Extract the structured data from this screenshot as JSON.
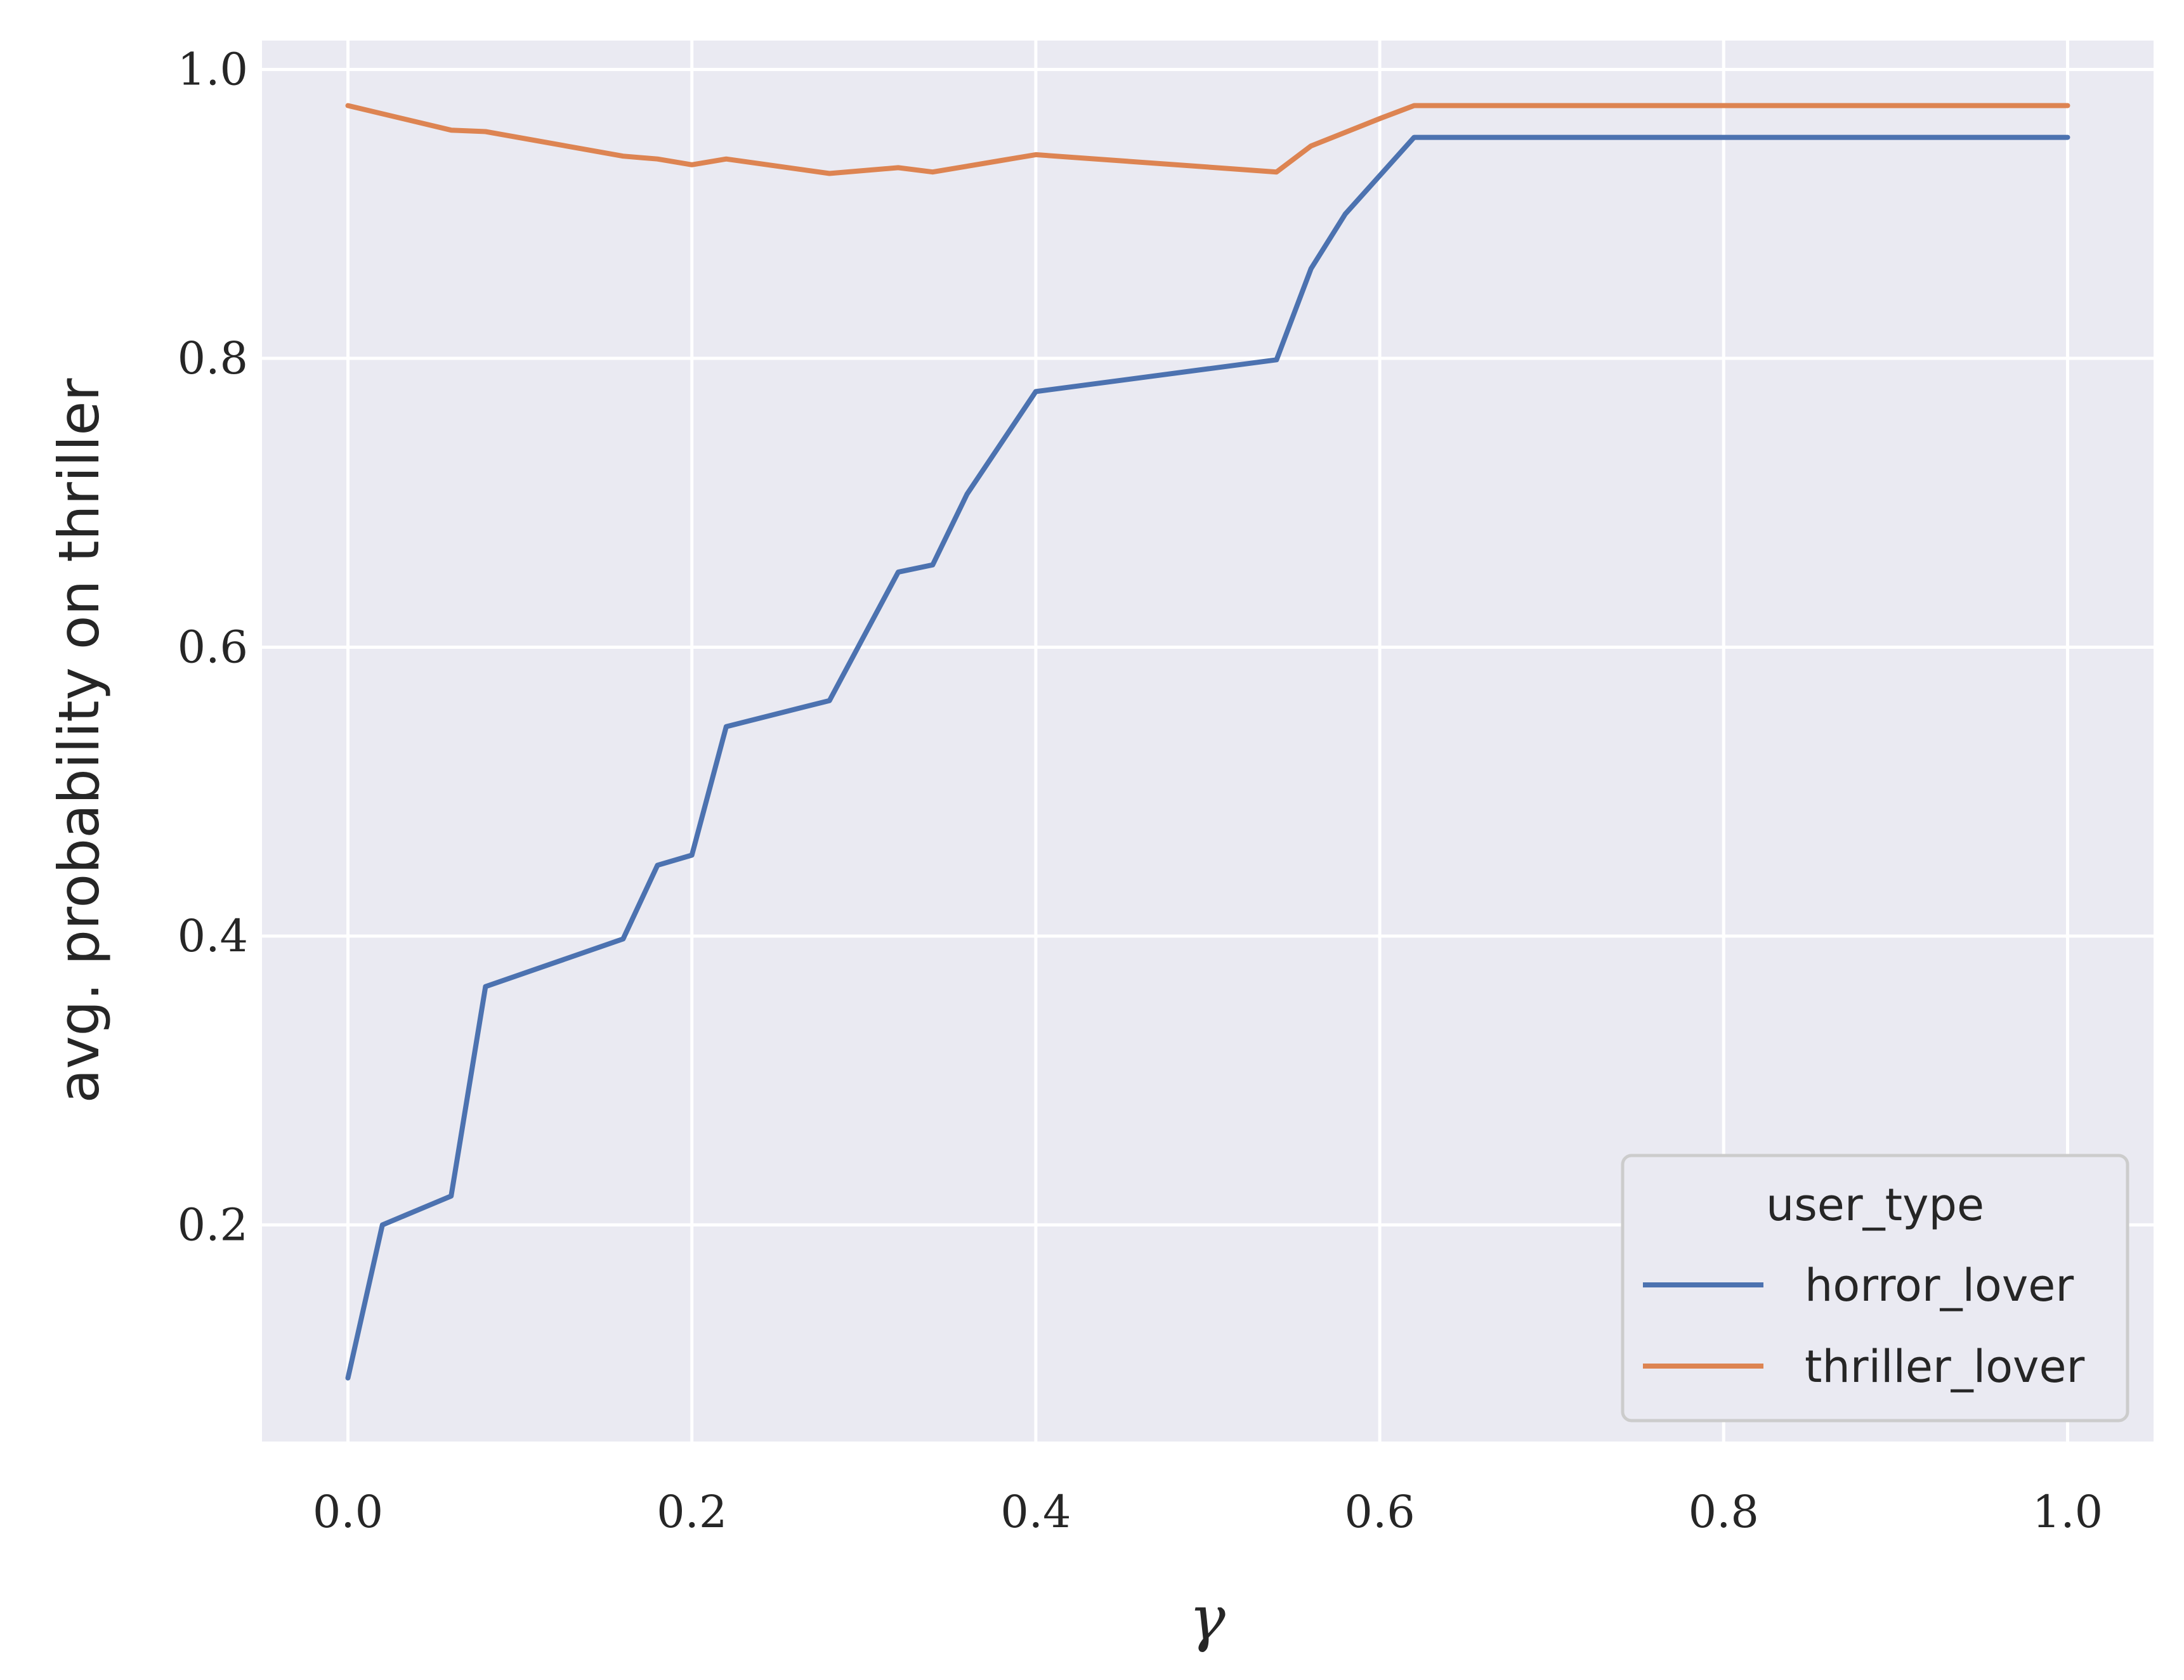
{
  "chart_data": {
    "type": "line",
    "title": "",
    "xlabel": "γ",
    "ylabel": "avg. probability on thriller",
    "xlim": [
      -0.05,
      1.05
    ],
    "ylim": [
      0.05,
      1.02
    ],
    "xticks": [
      0.0,
      0.2,
      0.4,
      0.6,
      0.8,
      1.0
    ],
    "xtick_labels": [
      "0.0",
      "0.2",
      "0.4",
      "0.6",
      "0.8",
      "1.0"
    ],
    "yticks": [
      0.2,
      0.4,
      0.6,
      0.8,
      1.0
    ],
    "ytick_labels": [
      "0.2",
      "0.4",
      "0.6",
      "0.8",
      "1.0"
    ],
    "grid": true,
    "background": "#eaeaf2",
    "legend": {
      "title": "user_type",
      "placement": "bottom-right"
    },
    "series": [
      {
        "name": "horror_lover",
        "color": "#4c72b0",
        "x": [
          0.0,
          0.02,
          0.06,
          0.08,
          0.16,
          0.18,
          0.2,
          0.22,
          0.28,
          0.32,
          0.34,
          0.36,
          0.4,
          0.54,
          0.56,
          0.58,
          0.62,
          1.0
        ],
        "y": [
          0.094,
          0.2,
          0.22,
          0.365,
          0.398,
          0.449,
          0.456,
          0.545,
          0.563,
          0.652,
          0.657,
          0.706,
          0.777,
          0.799,
          0.862,
          0.9,
          0.953,
          0.953
        ]
      },
      {
        "name": "thriller_lover",
        "color": "#dd8452",
        "x": [
          0.0,
          0.06,
          0.08,
          0.16,
          0.18,
          0.2,
          0.22,
          0.28,
          0.32,
          0.34,
          0.38,
          0.4,
          0.54,
          0.56,
          0.6,
          0.62,
          1.0
        ],
        "y": [
          0.975,
          0.958,
          0.957,
          0.94,
          0.938,
          0.934,
          0.938,
          0.928,
          0.932,
          0.929,
          0.937,
          0.941,
          0.929,
          0.947,
          0.966,
          0.975,
          0.975
        ]
      }
    ]
  }
}
